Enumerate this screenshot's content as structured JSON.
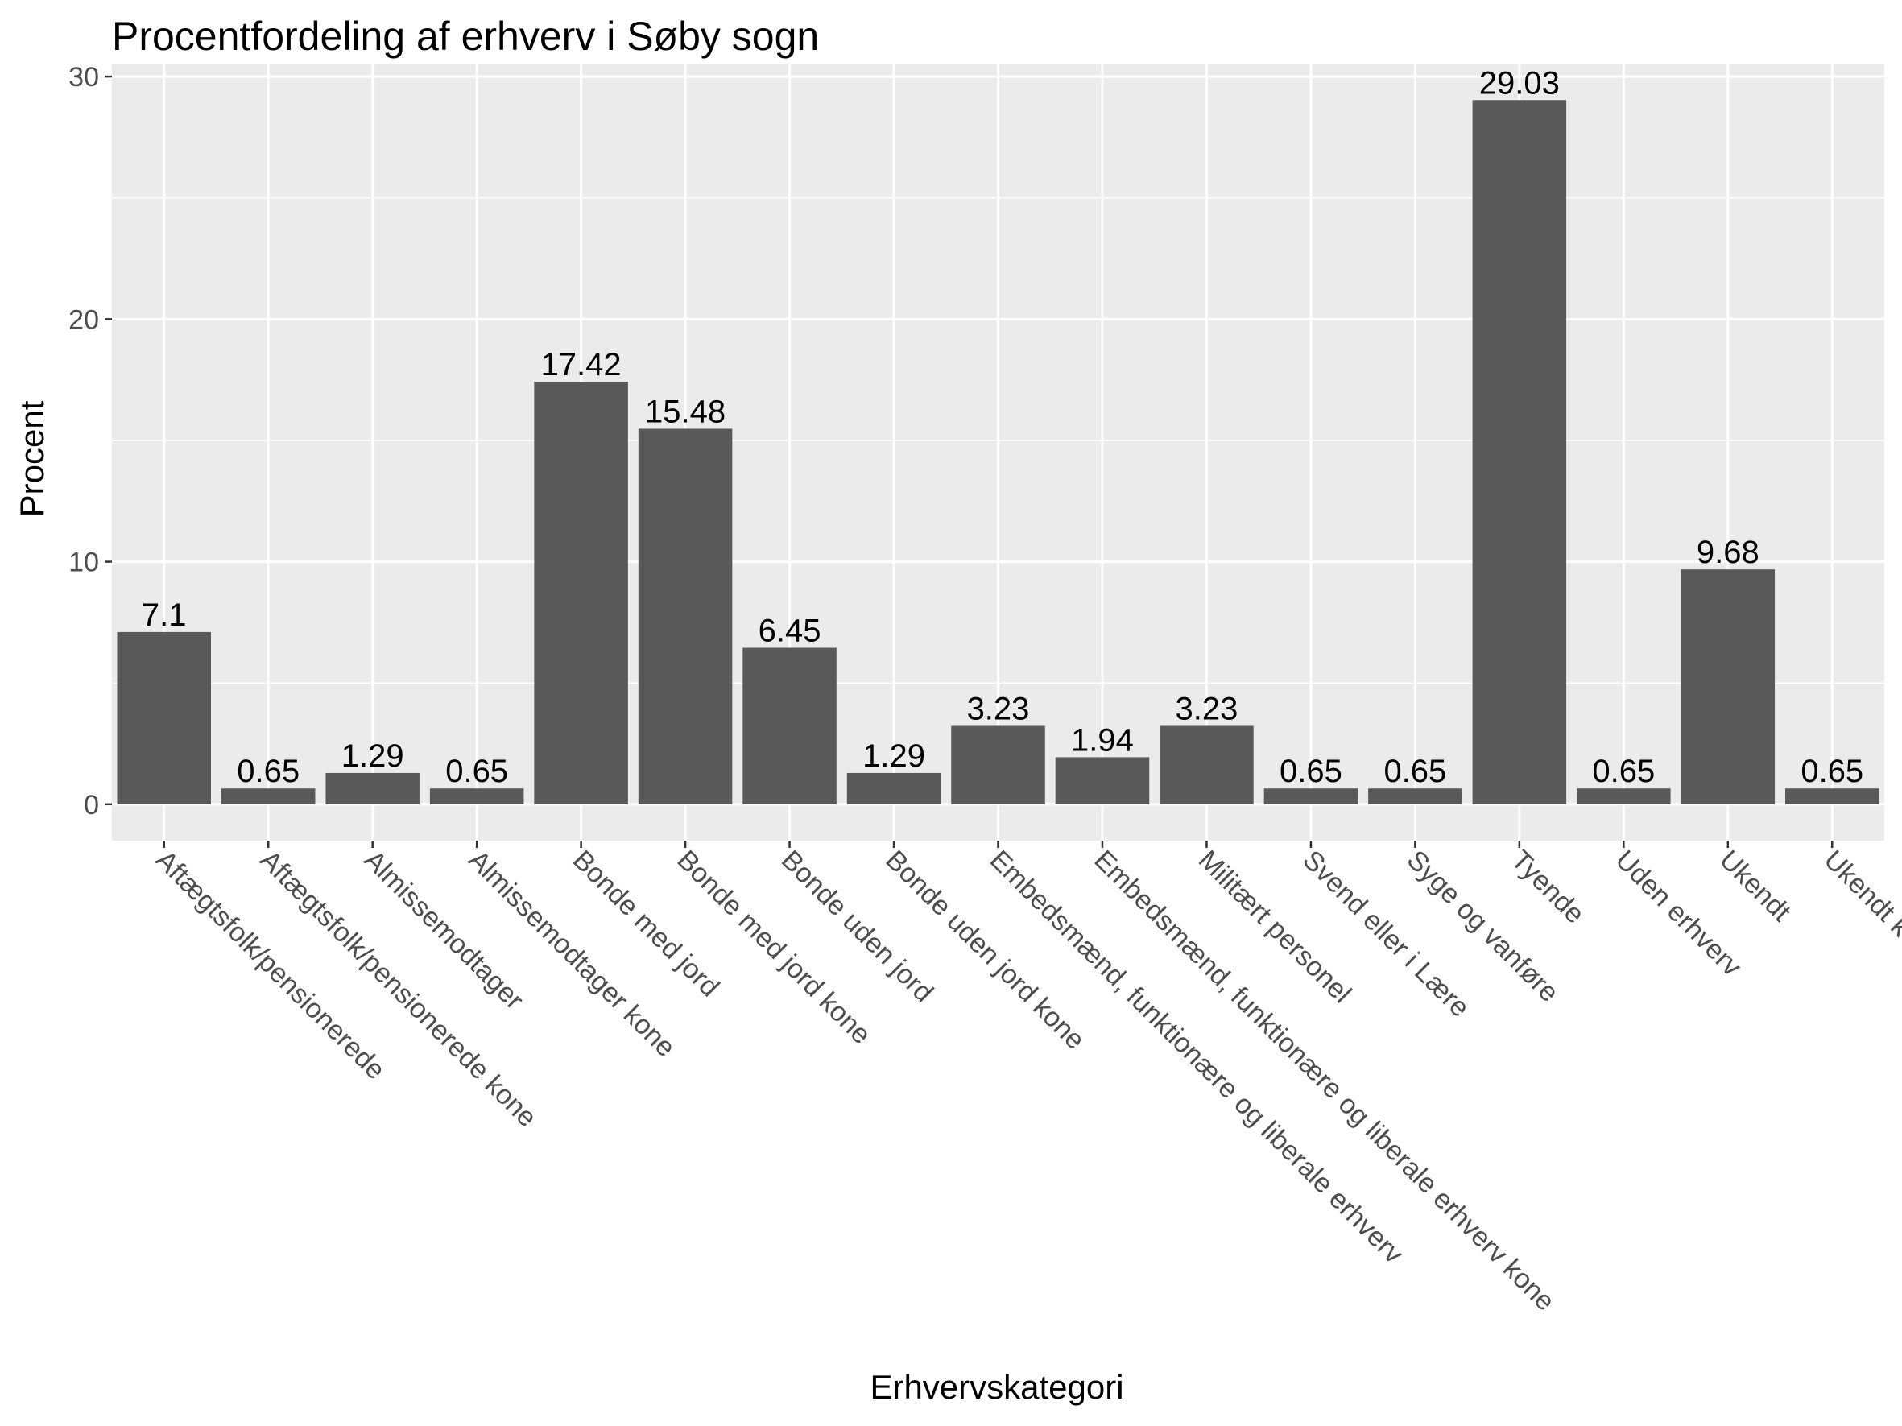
{
  "chart_data": {
    "type": "bar",
    "title": "Procentfordeling af erhverv i Søby sogn",
    "xlabel": "Erhvervskategori",
    "ylabel": "Procent",
    "ylim": [
      -1.5,
      30.5
    ],
    "yticks": [
      0,
      10,
      20,
      30
    ],
    "grid": true,
    "legend": "none",
    "colors": {
      "panel": "#ebebeb",
      "grid": "#ffffff",
      "bar": "#595959",
      "tick": "#333333"
    },
    "categories": [
      "Aftægtsfolk/pensionerede",
      "Aftægtsfolk/pensionerede kone",
      "Almissemodtager",
      "Almissemodtager kone",
      "Bonde med jord",
      "Bonde med jord kone",
      "Bonde uden jord",
      "Bonde uden jord kone",
      "Embedsmænd, funktionære og liberale erhverv",
      "Embedsmænd, funktionære og liberale erhverv kone",
      "Militært personel",
      "Svend eller i Lære",
      "Syge og vanføre",
      "Tyende",
      "Uden erhverv",
      "Ukendt",
      "Ukendt kone"
    ],
    "values": [
      7.1,
      0.65,
      1.29,
      0.65,
      17.42,
      15.48,
      6.45,
      1.29,
      3.23,
      1.94,
      3.23,
      0.65,
      0.65,
      29.03,
      0.65,
      9.68,
      0.65
    ],
    "value_labels": [
      "7.1",
      "0.65",
      "1.29",
      "0.65",
      "17.42",
      "15.48",
      "6.45",
      "1.29",
      "3.23",
      "1.94",
      "3.23",
      "0.65",
      "0.65",
      "29.03",
      "0.65",
      "9.68",
      "0.65"
    ]
  }
}
